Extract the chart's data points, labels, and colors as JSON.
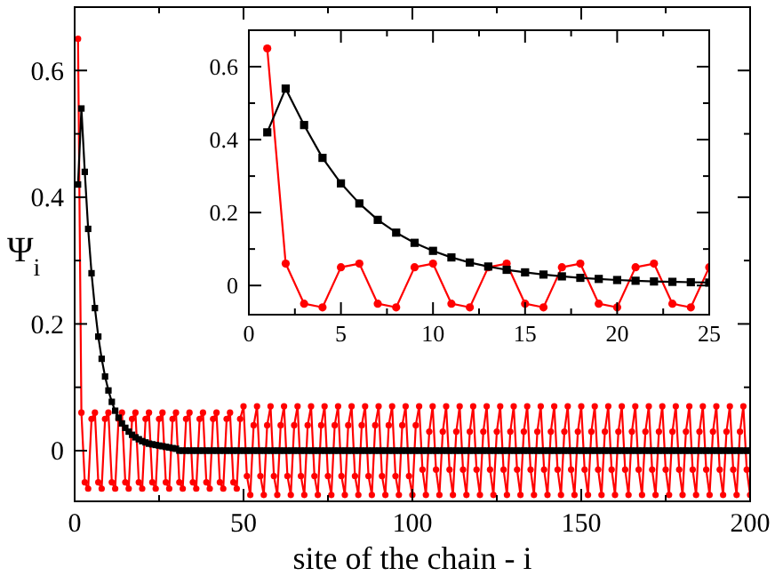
{
  "chart_data": [
    {
      "type": "line",
      "xlabel": "site of the chain - i",
      "ylabel": "Ψ$_{i}$",
      "xlim": [
        0,
        200
      ],
      "ylim": [
        -0.08,
        0.7
      ],
      "xticks": [
        0,
        {
          "value": 25,
          "label": null
        },
        50,
        {
          "value": 75,
          "label": null
        },
        100,
        {
          "value": 125,
          "label": null
        },
        150,
        {
          "value": 175,
          "label": null
        },
        200
      ],
      "yticks": [
        0,
        {
          "value": 0.1,
          "label": null
        },
        0.2,
        {
          "value": 0.3,
          "label": null
        },
        0.4,
        {
          "value": 0.5,
          "label": null
        },
        0.6
      ],
      "grid": false,
      "x": [
        1,
        2,
        3,
        4,
        5,
        6,
        7,
        8,
        9,
        10,
        11,
        12,
        13,
        14,
        15,
        16,
        17,
        18,
        19,
        20,
        21,
        22,
        23,
        24,
        25,
        26,
        27,
        28,
        29,
        30,
        31,
        32,
        33,
        34,
        35,
        36,
        37,
        38,
        39,
        40,
        41,
        42,
        43,
        44,
        45,
        46,
        47,
        48,
        49,
        50,
        51,
        52,
        53,
        54,
        55,
        56,
        57,
        58,
        59,
        60,
        61,
        62,
        63,
        64,
        65,
        66,
        67,
        68,
        69,
        70,
        71,
        72,
        73,
        74,
        75,
        76,
        77,
        78,
        79,
        80,
        81,
        82,
        83,
        84,
        85,
        86,
        87,
        88,
        89,
        90,
        91,
        92,
        93,
        94,
        95,
        96,
        97,
        98,
        99,
        100,
        101,
        102,
        103,
        104,
        105,
        106,
        107,
        108,
        109,
        110,
        111,
        112,
        113,
        114,
        115,
        116,
        117,
        118,
        119,
        120,
        121,
        122,
        123,
        124,
        125,
        126,
        127,
        128,
        129,
        130,
        131,
        132,
        133,
        134,
        135,
        136,
        137,
        138,
        139,
        140,
        141,
        142,
        143,
        144,
        145,
        146,
        147,
        148,
        149,
        150,
        151,
        152,
        153,
        154,
        155,
        156,
        157,
        158,
        159,
        160,
        161,
        162,
        163,
        164,
        165,
        166,
        167,
        168,
        169,
        170,
        171,
        172,
        173,
        174,
        175,
        176,
        177,
        178,
        179,
        180,
        181,
        182,
        183,
        184,
        185,
        186,
        187,
        188,
        189,
        190,
        191,
        192,
        193,
        194,
        195,
        196,
        197,
        198,
        199,
        200
      ],
      "series": [
        {
          "color": "#ff0000",
          "marker": "circle",
          "values": [
            0.65,
            0.06,
            -0.05,
            -0.06,
            0.05,
            0.06,
            -0.05,
            -0.06,
            0.05,
            0.06,
            -0.05,
            -0.06,
            0.05,
            0.06,
            -0.05,
            -0.06,
            0.05,
            0.06,
            -0.05,
            -0.06,
            0.05,
            0.06,
            -0.05,
            -0.06,
            0.05,
            0.06,
            -0.05,
            -0.06,
            0.05,
            0.06,
            -0.05,
            -0.06,
            0.05,
            0.06,
            -0.05,
            -0.06,
            0.05,
            0.06,
            -0.05,
            -0.06,
            0.05,
            0.06,
            -0.05,
            -0.06,
            0.05,
            0.06,
            -0.05,
            -0.06,
            0.05,
            0.07,
            -0.04,
            -0.07,
            0.04,
            0.07,
            -0.04,
            -0.07,
            0.04,
            0.07,
            -0.04,
            -0.07,
            0.04,
            0.07,
            -0.04,
            -0.07,
            0.04,
            0.07,
            -0.04,
            -0.07,
            0.04,
            0.07,
            -0.04,
            -0.07,
            0.04,
            0.07,
            -0.04,
            -0.07,
            0.04,
            0.07,
            -0.04,
            -0.07,
            0.04,
            0.07,
            -0.04,
            -0.07,
            0.04,
            0.07,
            -0.04,
            -0.07,
            0.04,
            0.07,
            -0.04,
            -0.07,
            0.04,
            0.07,
            -0.04,
            -0.07,
            0.04,
            0.07,
            -0.04,
            -0.07,
            0.04,
            0.07,
            -0.03,
            -0.07,
            0.03,
            0.07,
            -0.03,
            -0.07,
            0.03,
            0.07,
            -0.03,
            -0.07,
            0.03,
            0.07,
            -0.03,
            -0.07,
            0.03,
            0.07,
            -0.03,
            -0.07,
            0.03,
            0.07,
            -0.03,
            -0.07,
            0.03,
            0.07,
            -0.03,
            -0.07,
            0.03,
            0.07,
            -0.03,
            -0.07,
            0.03,
            0.07,
            -0.03,
            -0.07,
            0.03,
            0.07,
            -0.03,
            -0.07,
            0.03,
            0.07,
            -0.03,
            -0.07,
            0.03,
            0.07,
            -0.03,
            -0.07,
            0.03,
            0.07,
            -0.03,
            -0.07,
            0.03,
            0.07,
            -0.03,
            -0.07,
            0.03,
            0.07,
            -0.03,
            -0.07,
            0.03,
            0.07,
            -0.03,
            -0.07,
            0.03,
            0.07,
            -0.03,
            -0.07,
            0.03,
            0.07,
            -0.03,
            -0.07,
            0.03,
            0.07,
            -0.03,
            -0.07,
            0.03,
            0.07,
            -0.03,
            -0.07,
            0.03,
            0.07,
            -0.03,
            -0.07,
            0.03,
            0.07,
            -0.03,
            -0.07,
            0.03,
            0.07,
            -0.03,
            -0.07,
            0.03,
            0.07,
            -0.03,
            -0.07,
            0.03,
            0.07,
            -0.03,
            -0.07
          ]
        },
        {
          "color": "#000000",
          "marker": "square",
          "values": [
            0.42,
            0.54,
            0.44,
            0.35,
            0.28,
            0.225,
            0.18,
            0.145,
            0.117,
            0.095,
            0.077,
            0.063,
            0.052,
            0.043,
            0.036,
            0.03,
            0.025,
            0.021,
            0.018,
            0.015,
            0.013,
            0.011,
            0.01,
            0.009,
            0.008,
            0.007,
            0.006,
            0.005,
            0.004,
            0.003,
            0,
            0,
            0,
            0,
            0,
            0,
            0,
            0,
            0,
            0,
            0,
            0,
            0,
            0,
            0,
            0,
            0,
            0,
            0,
            0,
            0,
            0,
            0,
            0,
            0,
            0,
            0,
            0,
            0,
            0,
            0,
            0,
            0,
            0,
            0,
            0,
            0,
            0,
            0,
            0,
            0,
            0,
            0,
            0,
            0,
            0,
            0,
            0,
            0,
            0,
            0,
            0,
            0,
            0,
            0,
            0,
            0,
            0,
            0,
            0,
            0,
            0,
            0,
            0,
            0,
            0,
            0,
            0,
            0,
            0,
            0,
            0,
            0,
            0,
            0,
            0,
            0,
            0,
            0,
            0,
            0,
            0,
            0,
            0,
            0,
            0,
            0,
            0,
            0,
            0,
            0,
            0,
            0,
            0,
            0,
            0,
            0,
            0,
            0,
            0,
            0,
            0,
            0,
            0,
            0,
            0,
            0,
            0,
            0,
            0,
            0,
            0,
            0,
            0,
            0,
            0,
            0,
            0,
            0,
            0,
            0,
            0,
            0,
            0,
            0,
            0,
            0,
            0,
            0,
            0,
            0,
            0,
            0,
            0,
            0,
            0,
            0,
            0,
            0,
            0,
            0,
            0,
            0,
            0,
            0,
            0,
            0,
            0,
            0,
            0,
            0,
            0,
            0,
            0,
            0,
            0,
            0,
            0,
            0,
            0,
            0,
            0,
            0,
            0,
            0,
            0,
            0,
            0,
            0,
            0
          ]
        }
      ]
    },
    {
      "type": "line",
      "xlim": [
        0,
        25
      ],
      "ylim": [
        -0.08,
        0.7
      ],
      "xticks": [
        0,
        {
          "value": 2.5,
          "label": null
        },
        5,
        {
          "value": 7.5,
          "label": null
        },
        10,
        {
          "value": 12.5,
          "label": null
        },
        15,
        {
          "value": 17.5,
          "label": null
        },
        20,
        {
          "value": 22.5,
          "label": null
        },
        25
      ],
      "yticks": [
        0,
        {
          "value": 0.1,
          "label": null
        },
        0.2,
        {
          "value": 0.3,
          "label": null
        },
        0.4,
        {
          "value": 0.5,
          "label": null
        },
        0.6
      ],
      "grid": false,
      "x": [
        1,
        2,
        3,
        4,
        5,
        6,
        7,
        8,
        9,
        10,
        11,
        12,
        13,
        14,
        15,
        16,
        17,
        18,
        19,
        20,
        21,
        22,
        23,
        24,
        25
      ],
      "series": [
        {
          "color": "#ff0000",
          "marker": "circle",
          "values": [
            0.65,
            0.06,
            -0.05,
            -0.06,
            0.05,
            0.06,
            -0.05,
            -0.06,
            0.05,
            0.06,
            -0.05,
            -0.06,
            0.05,
            0.06,
            -0.05,
            -0.06,
            0.05,
            0.06,
            -0.05,
            -0.06,
            0.05,
            0.06,
            -0.05,
            -0.06,
            0.05
          ]
        },
        {
          "color": "#000000",
          "marker": "square",
          "values": [
            0.42,
            0.54,
            0.44,
            0.35,
            0.28,
            0.225,
            0.18,
            0.145,
            0.117,
            0.095,
            0.077,
            0.063,
            0.052,
            0.043,
            0.036,
            0.03,
            0.025,
            0.021,
            0.018,
            0.015,
            0.013,
            0.011,
            0.01,
            0.009,
            0.008
          ]
        }
      ]
    }
  ]
}
